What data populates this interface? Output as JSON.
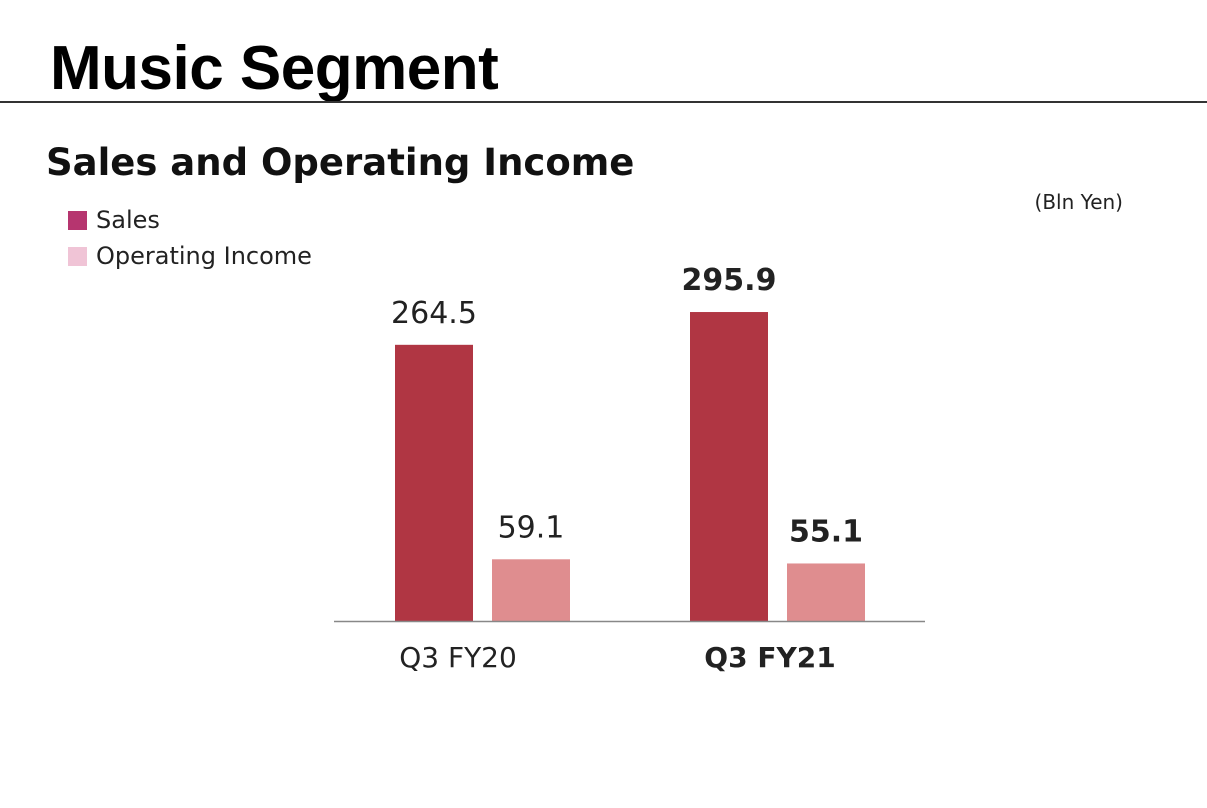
{
  "page": {
    "title": "Music Segment",
    "chart_heading": "Sales and Operating Income",
    "unit_label": "(Bln Yen)"
  },
  "colors": {
    "sales_bar": "#b03643",
    "operating_income_bar": "#df8d8f",
    "legend_sales": "#b6356f",
    "legend_operating_income": "#f0c4d6",
    "axis": "#888888"
  },
  "legend": {
    "items": [
      {
        "label": "Sales",
        "color": "#b6356f"
      },
      {
        "label": "Operating Income",
        "color": "#f0c4d6"
      }
    ]
  },
  "chart_data": {
    "type": "bar",
    "title": "Sales and Operating Income",
    "unit": "(Bln Yen)",
    "categories": [
      "Q3 FY20",
      "Q3 FY21"
    ],
    "highlight_category": "Q3 FY21",
    "series": [
      {
        "name": "Sales",
        "values": [
          264.5,
          295.9
        ]
      },
      {
        "name": "Operating Income",
        "values": [
          59.1,
          55.1
        ]
      }
    ],
    "ylim": [
      0,
      317
    ],
    "grid": false,
    "legend_position": "top-left"
  }
}
